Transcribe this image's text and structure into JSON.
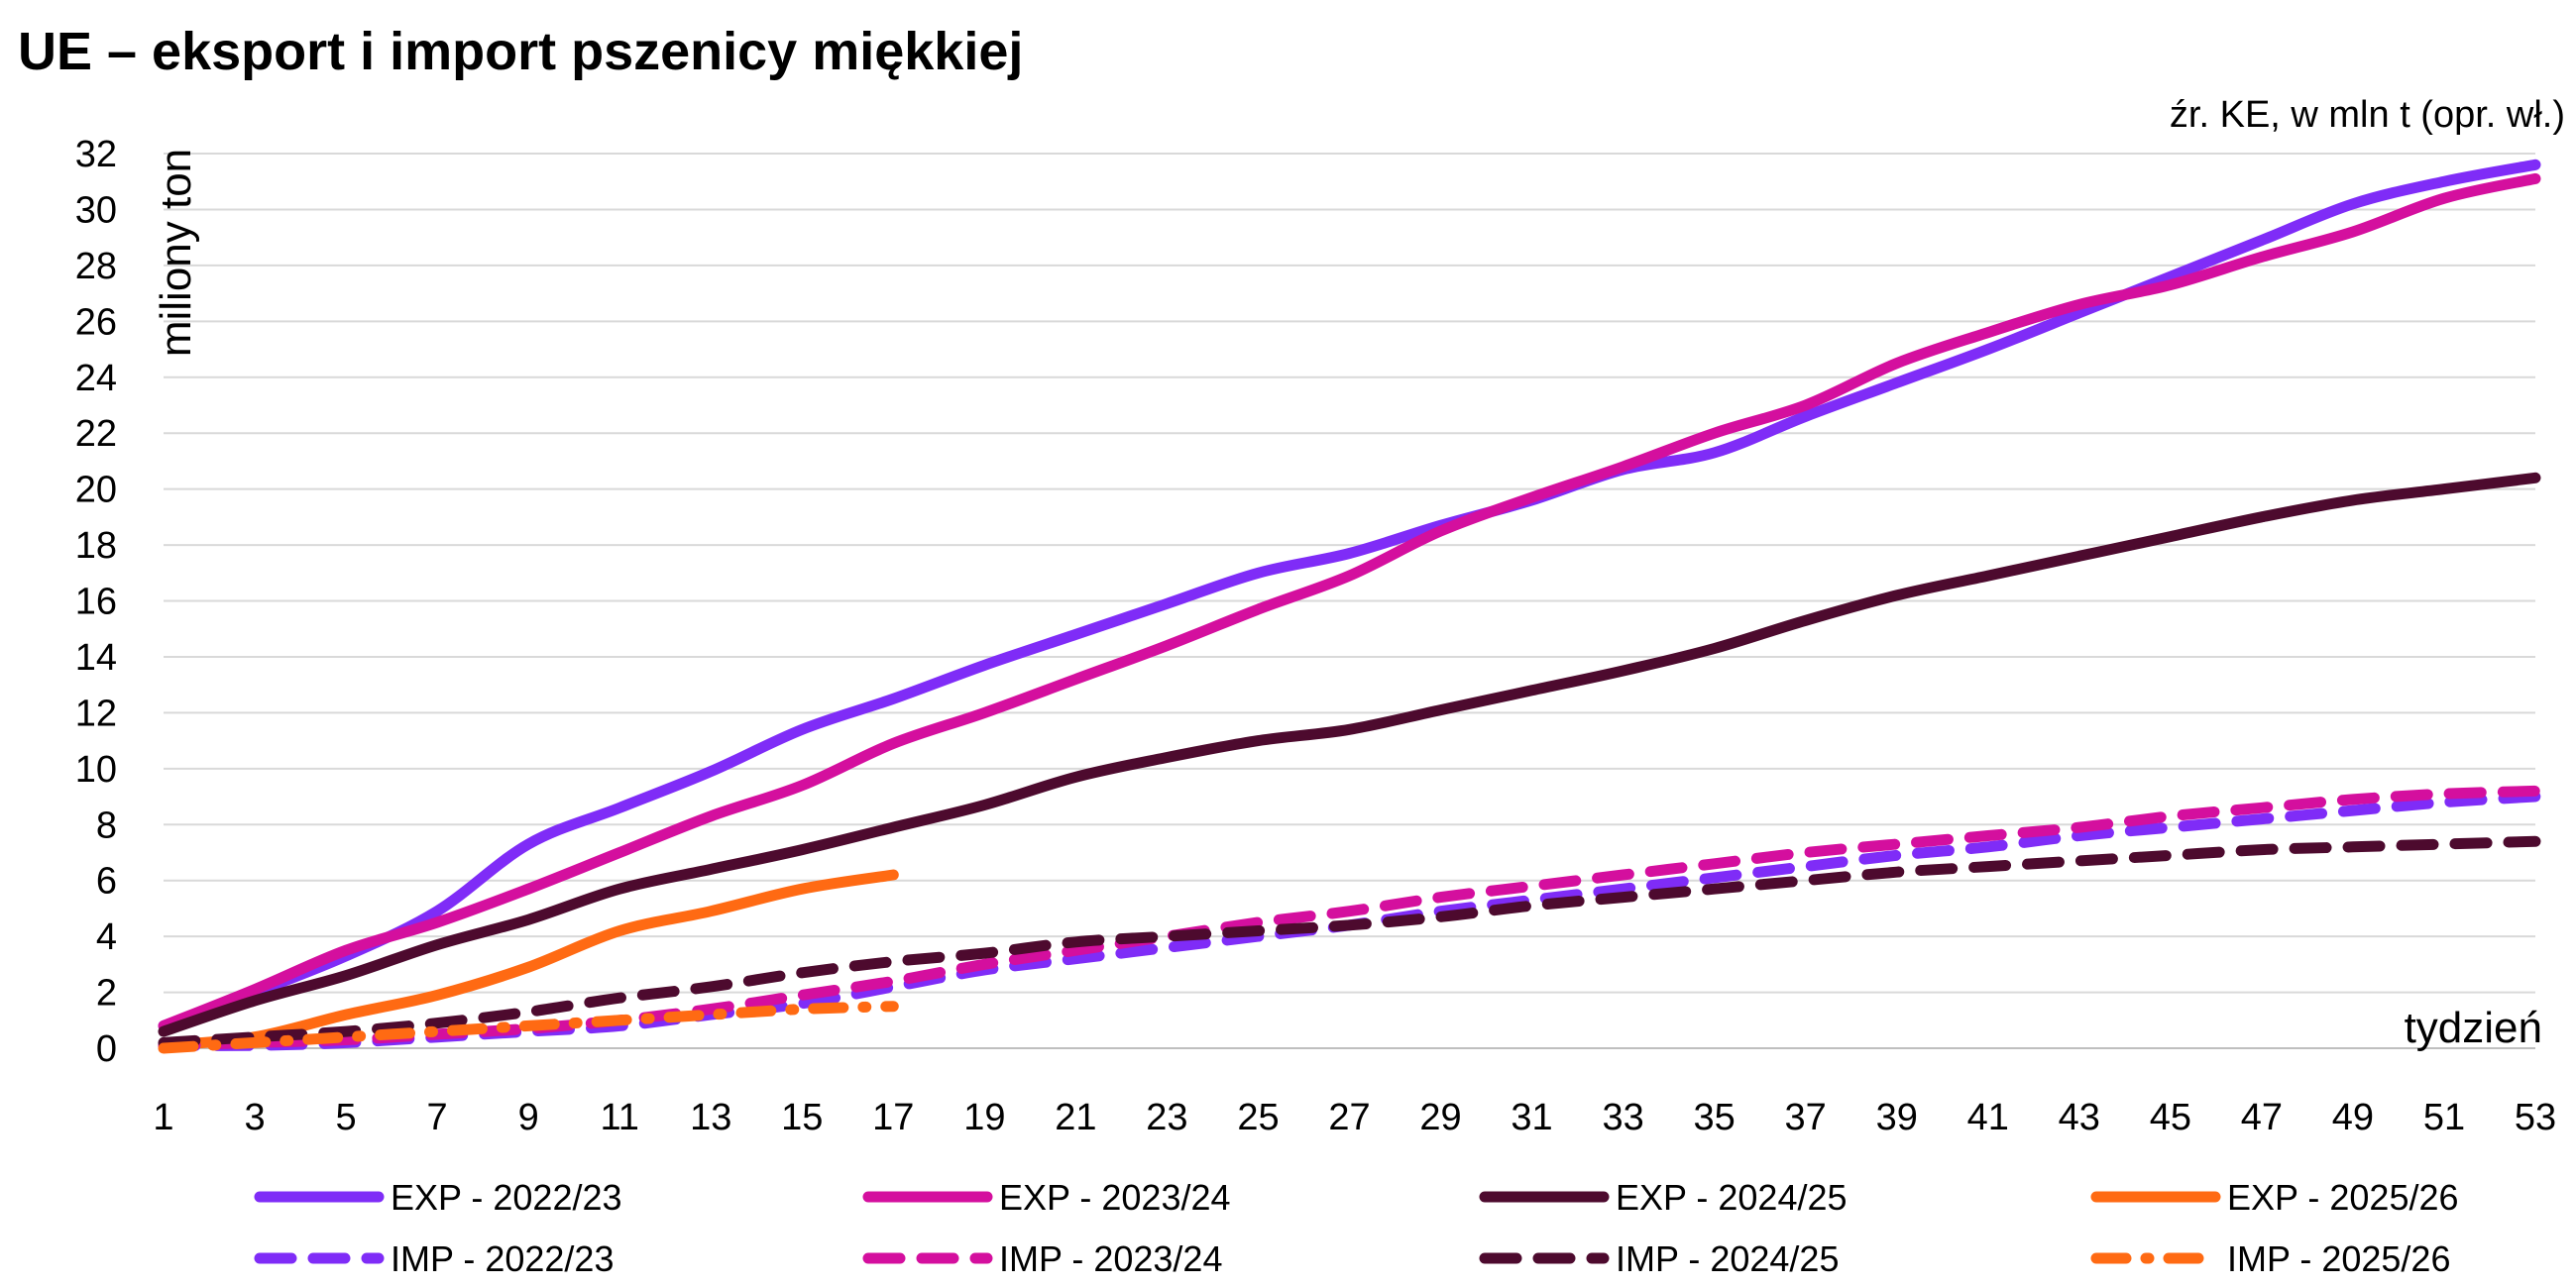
{
  "chart_data": {
    "type": "line",
    "title": "UE – eksport i import pszenicy miękkiej",
    "source_note": "źr. KE, w mln t (opr. wł.)",
    "ylabel": "miliony ton",
    "xlabel": "tydzień",
    "xlim": [
      1,
      53
    ],
    "ylim": [
      0,
      32
    ],
    "grid": true,
    "legend_position": "bottom",
    "x_ticks": [
      1,
      3,
      5,
      7,
      9,
      11,
      13,
      15,
      17,
      19,
      21,
      23,
      25,
      27,
      29,
      31,
      33,
      35,
      37,
      39,
      41,
      43,
      45,
      47,
      49,
      51,
      53
    ],
    "y_ticks": [
      0,
      2,
      4,
      6,
      8,
      10,
      12,
      14,
      16,
      18,
      20,
      22,
      24,
      26,
      28,
      30,
      32
    ],
    "series": [
      {
        "name": "EXP - 2022/23",
        "color": "#7F2CF7",
        "style": "solid",
        "x": [
          1,
          3,
          5,
          7,
          9,
          11,
          13,
          15,
          17,
          19,
          21,
          23,
          25,
          27,
          29,
          31,
          33,
          35,
          37,
          39,
          41,
          43,
          45,
          47,
          49,
          51,
          53
        ],
        "values": [
          0.8,
          2.0,
          3.3,
          4.9,
          7.3,
          8.6,
          9.9,
          11.4,
          12.5,
          13.7,
          14.8,
          15.9,
          17.0,
          17.7,
          18.7,
          19.6,
          20.7,
          21.3,
          22.6,
          23.8,
          25.0,
          26.3,
          27.6,
          28.9,
          30.2,
          31.0,
          31.6
        ]
      },
      {
        "name": "EXP - 2023/24",
        "color": "#D40F9E",
        "style": "solid",
        "x": [
          1,
          3,
          5,
          7,
          9,
          11,
          13,
          15,
          17,
          19,
          21,
          23,
          25,
          27,
          29,
          31,
          33,
          35,
          37,
          39,
          41,
          43,
          45,
          47,
          49,
          51,
          53
        ],
        "values": [
          0.8,
          2.1,
          3.5,
          4.5,
          5.7,
          7.0,
          8.3,
          9.4,
          10.9,
          12.0,
          13.2,
          14.4,
          15.7,
          16.9,
          18.5,
          19.7,
          20.8,
          22.0,
          23.0,
          24.5,
          25.6,
          26.6,
          27.3,
          28.3,
          29.2,
          30.4,
          31.1
        ]
      },
      {
        "name": "EXP - 2024/25",
        "color": "#4D0A2E",
        "style": "solid",
        "x": [
          1,
          3,
          5,
          7,
          9,
          11,
          13,
          15,
          17,
          19,
          21,
          23,
          25,
          27,
          29,
          31,
          33,
          35,
          37,
          39,
          41,
          43,
          45,
          47,
          49,
          51,
          53
        ],
        "values": [
          0.6,
          1.7,
          2.6,
          3.7,
          4.6,
          5.7,
          6.4,
          7.1,
          7.9,
          8.7,
          9.7,
          10.4,
          11.0,
          11.4,
          12.1,
          12.8,
          13.5,
          14.3,
          15.3,
          16.2,
          16.9,
          17.6,
          18.3,
          19.0,
          19.6,
          20.0,
          20.4
        ]
      },
      {
        "name": "EXP - 2025/26",
        "color": "#FF6A13",
        "style": "solid",
        "x": [
          1,
          3,
          5,
          7,
          9,
          11,
          13,
          15,
          17
        ],
        "values": [
          0.1,
          0.4,
          1.2,
          1.9,
          2.9,
          4.2,
          4.9,
          5.7,
          6.2
        ]
      },
      {
        "name": "IMP - 2022/23",
        "color": "#7F2CF7",
        "style": "dashed",
        "x": [
          1,
          3,
          5,
          7,
          9,
          11,
          13,
          15,
          17,
          19,
          21,
          23,
          25,
          27,
          29,
          31,
          33,
          35,
          37,
          39,
          41,
          43,
          45,
          47,
          49,
          51,
          53
        ],
        "values": [
          0.1,
          0.1,
          0.2,
          0.4,
          0.6,
          0.8,
          1.2,
          1.6,
          2.2,
          2.8,
          3.2,
          3.6,
          4.0,
          4.4,
          4.9,
          5.3,
          5.7,
          6.1,
          6.5,
          6.9,
          7.2,
          7.6,
          7.9,
          8.2,
          8.5,
          8.8,
          9.0
        ]
      },
      {
        "name": "IMP - 2023/24",
        "color": "#D40F9E",
        "style": "dashed",
        "x": [
          1,
          3,
          5,
          7,
          9,
          11,
          13,
          15,
          17,
          19,
          21,
          23,
          25,
          27,
          29,
          31,
          33,
          35,
          37,
          39,
          41,
          43,
          45,
          47,
          49,
          51,
          53
        ],
        "values": [
          0.1,
          0.2,
          0.3,
          0.5,
          0.7,
          1.0,
          1.4,
          1.9,
          2.4,
          3.0,
          3.5,
          4.0,
          4.5,
          4.9,
          5.4,
          5.8,
          6.2,
          6.6,
          7.0,
          7.3,
          7.6,
          7.9,
          8.3,
          8.6,
          8.9,
          9.1,
          9.2
        ]
      },
      {
        "name": "IMP - 2024/25",
        "color": "#4D0A2E",
        "style": "dashed",
        "x": [
          1,
          3,
          5,
          7,
          9,
          11,
          13,
          15,
          17,
          19,
          21,
          23,
          25,
          27,
          29,
          31,
          33,
          35,
          37,
          39,
          41,
          43,
          45,
          47,
          49,
          51,
          53
        ],
        "values": [
          0.2,
          0.4,
          0.6,
          0.9,
          1.3,
          1.8,
          2.2,
          2.7,
          3.1,
          3.4,
          3.8,
          4.0,
          4.2,
          4.4,
          4.7,
          5.1,
          5.4,
          5.7,
          6.0,
          6.3,
          6.5,
          6.7,
          6.9,
          7.1,
          7.2,
          7.3,
          7.4
        ]
      },
      {
        "name": "IMP - 2025/26",
        "color": "#FF6A13",
        "style": "dashdot",
        "x": [
          1,
          3,
          5,
          7,
          9,
          11,
          13,
          15,
          17
        ],
        "values": [
          0.0,
          0.2,
          0.4,
          0.6,
          0.8,
          1.0,
          1.2,
          1.4,
          1.5
        ]
      }
    ]
  }
}
